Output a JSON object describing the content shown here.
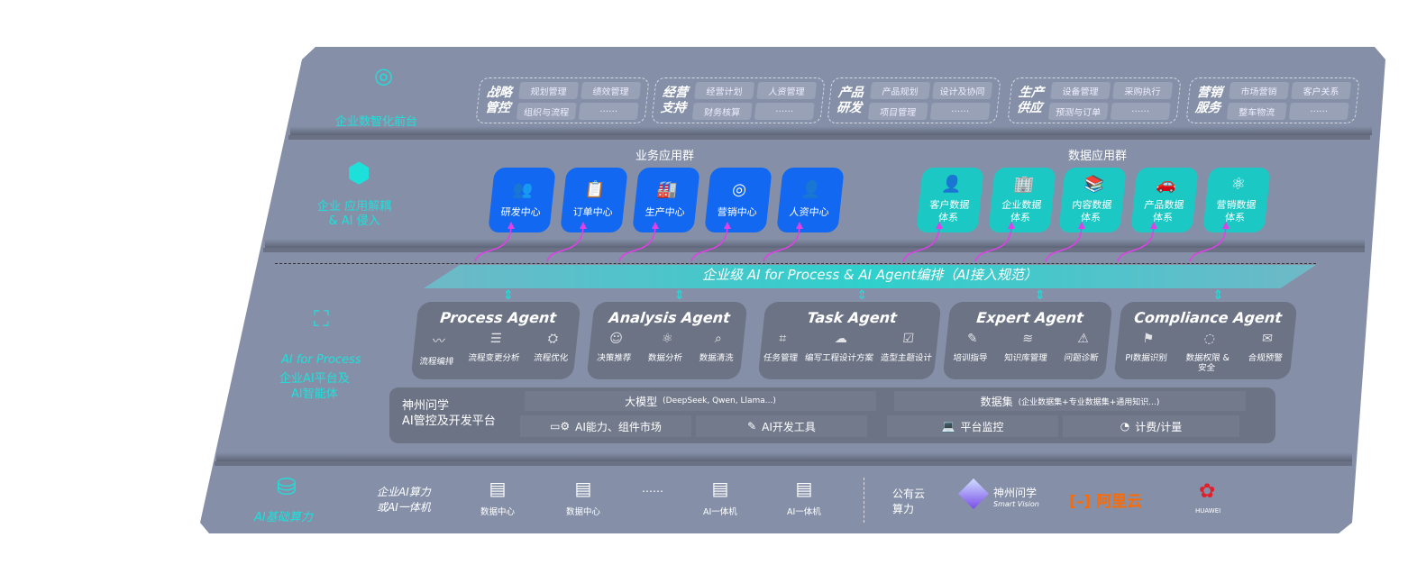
{
  "layers": {
    "front": {
      "label": "企业数智化前台",
      "icon": "brain-icon",
      "groups": [
        {
          "title": "战略管控",
          "items": [
            "规划管理",
            "绩效管理",
            "组织与流程",
            "……"
          ]
        },
        {
          "title": "经营支持",
          "items": [
            "经营计划",
            "人资管理",
            "财务核算",
            "……"
          ]
        },
        {
          "title": "产品研发",
          "items": [
            "产品规划",
            "设计及协同",
            "项目管理",
            "……"
          ]
        },
        {
          "title": "生产供应",
          "items": [
            "设备管理",
            "采购执行",
            "预测与订单",
            "……"
          ]
        },
        {
          "title": "营销服务",
          "items": [
            "市场营销",
            "客户关系",
            "整车物流",
            "……"
          ]
        }
      ]
    },
    "apps": {
      "label": "企业 应用解耦\n& AI 侵入",
      "icon": "molecule-icon",
      "business_title": "业务应用群",
      "data_title": "数据应用群",
      "business": [
        "研发中心",
        "订单中心",
        "生产中心",
        "营销中心",
        "人资中心"
      ],
      "data": [
        "客户数据\n体系",
        "企业数据\n体系",
        "内容数据\n体系",
        "产品数据\n体系",
        "营销数据\n体系"
      ]
    },
    "ai": {
      "label_en": "AI for Process",
      "label_cn": "企业AI平台及\nAI智能体",
      "icon": "face-scan-icon",
      "banner": "企业级 AI for Process & AI Agent编排（AI接入规范）",
      "agents": [
        {
          "name": "Process Agent",
          "items": [
            "流程编排",
            "流程变更分析",
            "流程优化"
          ]
        },
        {
          "name": "Analysis Agent",
          "items": [
            "决策推荐",
            "数据分析",
            "数据清洗"
          ]
        },
        {
          "name": "Task Agent",
          "items": [
            "任务管理",
            "编写工程设计方案",
            "造型主题设计"
          ]
        },
        {
          "name": "Expert Agent",
          "items": [
            "培训指导",
            "知识库管理",
            "问题诊断"
          ]
        },
        {
          "name": "Compliance Agent",
          "items": [
            "PI数据识别",
            "数据权限 &\n安全",
            "合规预警"
          ]
        }
      ],
      "platform": {
        "title": "神州问学\nAI管控及开发平台",
        "model": "大模型",
        "model_note": "(DeepSeek, Qwen, Llama...)",
        "dataset": "数据集",
        "dataset_note": "(企业数据集+专业数据集+通用知识...)",
        "market": "AI能力、组件市场",
        "devtools": "AI开发工具",
        "monitor": "平台监控",
        "billing": "计费/计量"
      }
    },
    "compute": {
      "label": "AI基础算力",
      "icon": "database-icon",
      "private_title": "企业AI算力\n或AI一体机",
      "servers": [
        "数据中心",
        "数据中心",
        "AI一体机",
        "AI一体机"
      ],
      "ellipsis": "……",
      "public_title": "公有云\n算力",
      "vendors": {
        "shenzhou": "神州问学",
        "shenzhou_sub": "Smart Vision",
        "aliyun": "阿里云",
        "huawei": "HUAWEI"
      }
    }
  },
  "colors": {
    "panel": "#8590a8",
    "blue": "#1268f0",
    "teal": "#1cc8c4",
    "cyan": "#1ee0da",
    "arrow": "#e040e8",
    "aliyun": "#ff6a00",
    "huawei": "#e0202a"
  }
}
